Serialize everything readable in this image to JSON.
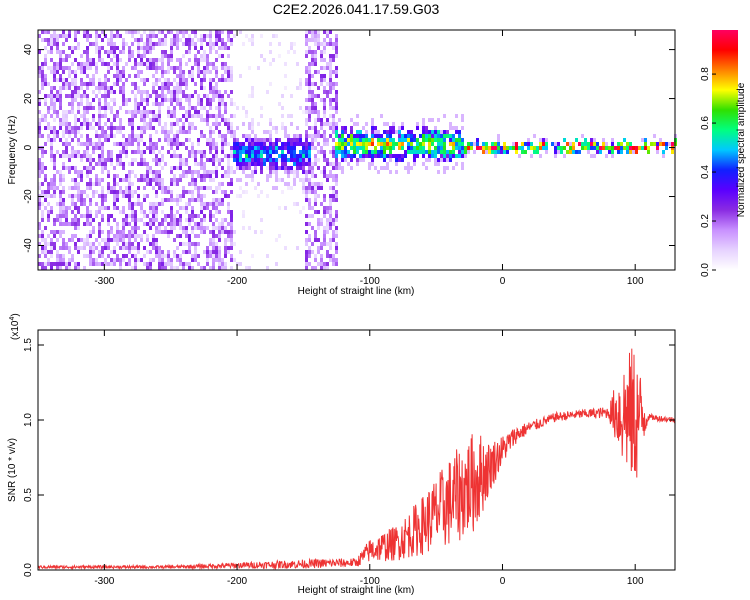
{
  "title": "C2E2.2026.041.17.59.G03",
  "chart_data": [
    {
      "type": "heatmap",
      "xlabel": "Height of straight line (km)",
      "ylabel": "Frequency (Hz)",
      "xlim": [
        -350,
        130
      ],
      "ylim": [
        -50,
        48
      ],
      "xticks": [
        -300,
        -200,
        -100,
        0,
        100
      ],
      "yticks": [
        -40,
        -20,
        0,
        20,
        40
      ],
      "colorbar": {
        "label": "Normalized spectral amplitude",
        "range": [
          0,
          0.98
        ],
        "ticks": [
          "0.0",
          "0.2",
          "0.4",
          "0.6",
          "0.8"
        ],
        "colormap": [
          "#ffffff",
          "#e6d2ff",
          "#c890ff",
          "#8a2be2",
          "#5a00ff",
          "#1020ff",
          "#00c8ff",
          "#00ff80",
          "#30e000",
          "#ffff00",
          "#ff8000",
          "#ff0000",
          "#ff0060"
        ]
      },
      "regions": [
        {
          "x": [
            -350,
            -205
          ],
          "level": 0.15,
          "pattern": "broadband noise"
        },
        {
          "x": [
            -205,
            -150
          ],
          "level": 0.05,
          "pattern": "sparse noise"
        },
        {
          "x": [
            -150,
            -125
          ],
          "level": 0.15,
          "pattern": "broadband noise"
        },
        {
          "x": [
            -205,
            -145
          ],
          "freq_center": -2,
          "freq_halfwidth": 7,
          "level": 0.35,
          "pattern": "signal cluster"
        },
        {
          "x": [
            -128,
            -30
          ],
          "freq_center": 2,
          "freq_halfwidth": 6,
          "level": 0.5,
          "pattern": "signal band"
        },
        {
          "x": [
            -30,
            130
          ],
          "freq_center": 1,
          "freq_halfwidth": 2,
          "level": 0.65,
          "pattern": "narrow carrier"
        }
      ]
    },
    {
      "type": "line",
      "xlabel": "Height of straight line (km)",
      "ylabel": "SNR (10 * v/v)",
      "scale_label": "(x10",
      "scale_exp": "4",
      "scale_close": ")",
      "xlim": [
        -350,
        130
      ],
      "ylim": [
        0,
        1.6
      ],
      "xticks": [
        -300,
        -200,
        -100,
        0,
        100
      ],
      "yticks": [
        "0.0",
        "0.5",
        "1.0",
        "1.5"
      ],
      "series": [
        {
          "color": "#ee3333",
          "x": [
            -350,
            -300,
            -250,
            -200,
            -150,
            -110,
            -100,
            -80,
            -60,
            -40,
            -20,
            -10,
            0,
            10,
            20,
            40,
            60,
            80,
            90,
            100,
            110,
            130
          ],
          "y": [
            0.02,
            0.02,
            0.02,
            0.03,
            0.04,
            0.05,
            0.13,
            0.18,
            0.3,
            0.45,
            0.6,
            0.68,
            0.8,
            0.9,
            0.95,
            1.02,
            1.04,
            1.05,
            1.05,
            1.02,
            1.02,
            1.0
          ],
          "noise_amp": [
            0.01,
            0.01,
            0.01,
            0.02,
            0.03,
            0.03,
            0.08,
            0.12,
            0.2,
            0.3,
            0.35,
            0.18,
            0.1,
            0.06,
            0.04,
            0.03,
            0.03,
            0.04,
            0.35,
            0.5,
            0.02,
            0.02
          ]
        }
      ]
    }
  ]
}
